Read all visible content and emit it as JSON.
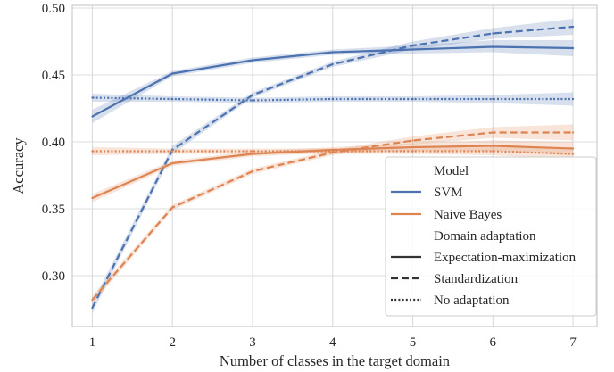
{
  "chart_data": {
    "type": "line",
    "xlabel": "Number of classes in the target domain",
    "ylabel": "Accuracy",
    "x": [
      1,
      2,
      3,
      4,
      5,
      6,
      7
    ],
    "xlim": [
      0.75,
      7.3
    ],
    "ylim": [
      0.262,
      0.502
    ],
    "xticks": [
      "1",
      "2",
      "3",
      "4",
      "5",
      "6",
      "7"
    ],
    "yticks": [
      "0.30",
      "0.35",
      "0.40",
      "0.45",
      "0.50"
    ],
    "yticks_values": [
      0.3,
      0.35,
      0.4,
      0.45,
      0.5
    ],
    "grid": true,
    "legend_placement": "lower-right",
    "colors": {
      "SVM": "#4c72b0",
      "Naive Bayes": "#dd8452",
      "neutral": "#333333"
    },
    "series": [
      {
        "model": "SVM",
        "adaptation": "Expectation-maximization",
        "style": "solid",
        "values": [
          0.419,
          0.451,
          0.461,
          0.467,
          0.469,
          0.471,
          0.47
        ],
        "band": [
          [
            0.414,
            0.424
          ],
          [
            0.449,
            0.453
          ],
          [
            0.459,
            0.463
          ],
          [
            0.465,
            0.469
          ],
          [
            0.466,
            0.472
          ],
          [
            0.467,
            0.476
          ],
          [
            0.464,
            0.476
          ]
        ]
      },
      {
        "model": "SVM",
        "adaptation": "Standardization",
        "style": "dashed",
        "values": [
          0.276,
          0.394,
          0.435,
          0.458,
          0.472,
          0.481,
          0.486
        ],
        "band": [
          [
            0.272,
            0.28
          ],
          [
            0.391,
            0.397
          ],
          [
            0.433,
            0.437
          ],
          [
            0.456,
            0.46
          ],
          [
            0.469,
            0.475
          ],
          [
            0.477,
            0.485
          ],
          [
            0.48,
            0.492
          ]
        ]
      },
      {
        "model": "SVM",
        "adaptation": "No adaptation",
        "style": "dotted",
        "values": [
          0.433,
          0.432,
          0.431,
          0.432,
          0.432,
          0.432,
          0.432
        ],
        "band": [
          [
            0.43,
            0.436
          ],
          [
            0.43,
            0.434
          ],
          [
            0.429,
            0.433
          ],
          [
            0.43,
            0.434
          ],
          [
            0.43,
            0.434
          ],
          [
            0.429,
            0.435
          ],
          [
            0.427,
            0.437
          ]
        ]
      },
      {
        "model": "Naive Bayes",
        "adaptation": "Expectation-maximization",
        "style": "solid",
        "values": [
          0.358,
          0.384,
          0.391,
          0.394,
          0.396,
          0.397,
          0.395
        ],
        "band": [
          [
            0.355,
            0.361
          ],
          [
            0.382,
            0.386
          ],
          [
            0.389,
            0.393
          ],
          [
            0.392,
            0.396
          ],
          [
            0.393,
            0.399
          ],
          [
            0.393,
            0.401
          ],
          [
            0.39,
            0.4
          ]
        ]
      },
      {
        "model": "Naive Bayes",
        "adaptation": "Standardization",
        "style": "dashed",
        "values": [
          0.282,
          0.351,
          0.378,
          0.392,
          0.401,
          0.407,
          0.407
        ],
        "band": [
          [
            0.279,
            0.285
          ],
          [
            0.349,
            0.353
          ],
          [
            0.376,
            0.38
          ],
          [
            0.39,
            0.394
          ],
          [
            0.398,
            0.404
          ],
          [
            0.403,
            0.411
          ],
          [
            0.401,
            0.413
          ]
        ]
      },
      {
        "model": "Naive Bayes",
        "adaptation": "No adaptation",
        "style": "dotted",
        "values": [
          0.393,
          0.393,
          0.393,
          0.393,
          0.393,
          0.393,
          0.391
        ],
        "band": [
          [
            0.39,
            0.396
          ],
          [
            0.391,
            0.395
          ],
          [
            0.391,
            0.395
          ],
          [
            0.391,
            0.395
          ],
          [
            0.391,
            0.395
          ],
          [
            0.39,
            0.396
          ],
          [
            0.387,
            0.395
          ]
        ]
      }
    ],
    "legend": {
      "model_title": "Model",
      "models": [
        "SVM",
        "Naive Bayes"
      ],
      "adaptation_title": "Domain adaptation",
      "adaptations": [
        "Expectation-maximization",
        "Standardization",
        "No adaptation"
      ]
    }
  }
}
